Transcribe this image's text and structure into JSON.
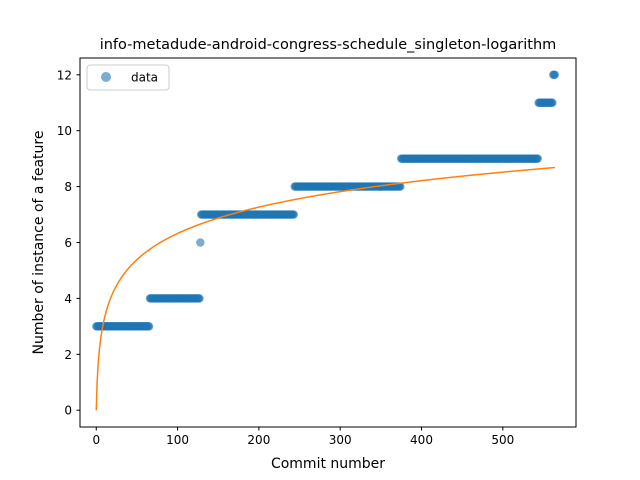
{
  "chart_data": {
    "type": "scatter",
    "title": "info-metadude-android-congress-schedule_singleton-logarithm",
    "xlabel": "Commit number",
    "ylabel": "Number of instance of a feature",
    "xlim": [
      -20,
      590
    ],
    "ylim": [
      -0.6,
      12.6
    ],
    "xticks": [
      0,
      100,
      200,
      300,
      400,
      500
    ],
    "yticks": [
      0,
      2,
      4,
      6,
      8,
      10,
      12
    ],
    "grid": false,
    "legend": {
      "position": "top-left",
      "entries": [
        "data"
      ]
    },
    "colors": {
      "data": "#1f77b4",
      "fit": "#ff7f0e"
    },
    "series": [
      {
        "name": "data",
        "kind": "scatter",
        "segments": [
          {
            "x_start": 0,
            "x_end": 65,
            "y": 3
          },
          {
            "x_start": 66,
            "x_end": 127,
            "y": 4
          },
          {
            "x_start": 128,
            "x_end": 128,
            "y": 6
          },
          {
            "x_start": 129,
            "x_end": 243,
            "y": 7
          },
          {
            "x_start": 244,
            "x_end": 374,
            "y": 8
          },
          {
            "x_start": 375,
            "x_end": 543,
            "y": 9
          },
          {
            "x_start": 544,
            "x_end": 561,
            "y": 11
          },
          {
            "x_start": 562,
            "x_end": 564,
            "y": 12
          }
        ]
      },
      {
        "kind": "line",
        "model": "logarithm",
        "formula": "y = a * ln(x + 1)",
        "a": 1.37,
        "x_range": [
          0,
          564
        ]
      }
    ]
  }
}
